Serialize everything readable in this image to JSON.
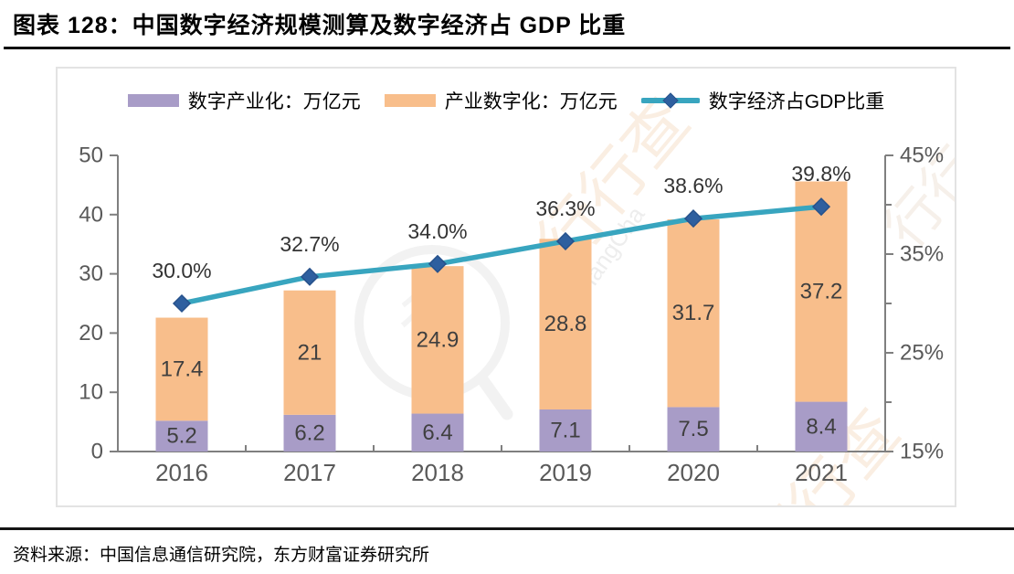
{
  "page": {
    "title": "图表  128：中国数字经济规模测算及数字经济占 GDP 比重",
    "source": "资料来源：中国信息通信研究院，东方财富证券研究所"
  },
  "watermark": {
    "brand": "HangHangCha",
    "text": "行行查",
    "logo_glyph": "行"
  },
  "chart_data": {
    "type": "bar",
    "subtype": "stacked-bars-with-line",
    "title": "中国数字经济规模测算及数字经济占GDP比重",
    "categories": [
      "2016",
      "2017",
      "2018",
      "2019",
      "2020",
      "2021"
    ],
    "series": [
      {
        "type": "bar",
        "name": "数字产业化：万亿元",
        "axis": "left",
        "color": "#a89cc7",
        "values": [
          5.2,
          6.2,
          6.4,
          7.1,
          7.5,
          8.4
        ],
        "labels": [
          "5.2",
          "6.2",
          "6.4",
          "7.1",
          "7.5",
          "8.4"
        ]
      },
      {
        "type": "bar",
        "name": "产业数字化：万亿元",
        "axis": "left",
        "color": "#f8be8b",
        "values": [
          17.4,
          21,
          24.9,
          28.8,
          31.7,
          37.2
        ],
        "labels": [
          "17.4",
          "21",
          "24.9",
          "28.8",
          "31.7",
          "37.2"
        ]
      },
      {
        "type": "line",
        "name": "数字经济占GDP比重",
        "axis": "right",
        "line_color": "#38a5bf",
        "marker": "diamond",
        "marker_color": "#2e5f9f",
        "marker_edge": "#27528c",
        "values": [
          30.0,
          32.7,
          34.0,
          36.3,
          38.6,
          39.8
        ],
        "labels": [
          "30.0%",
          "32.7%",
          "34.0%",
          "36.3%",
          "38.6%",
          "39.8%"
        ]
      }
    ],
    "left_axis": {
      "min": 0,
      "max": 50,
      "ticks": [
        0,
        10,
        20,
        30,
        40,
        50
      ]
    },
    "right_axis": {
      "min": 15,
      "max": 45,
      "major_ticks": [
        15,
        25,
        35,
        45
      ],
      "minor_ticks": [
        20,
        30,
        40
      ],
      "suffix": "%"
    },
    "legend_position": "top",
    "grid": false,
    "styles": {
      "axis_color": "#7f7f7f",
      "tick_label_color": "#595959",
      "data_label_color": "#3f3f3f",
      "panel_border": "#e3e3e3"
    }
  }
}
